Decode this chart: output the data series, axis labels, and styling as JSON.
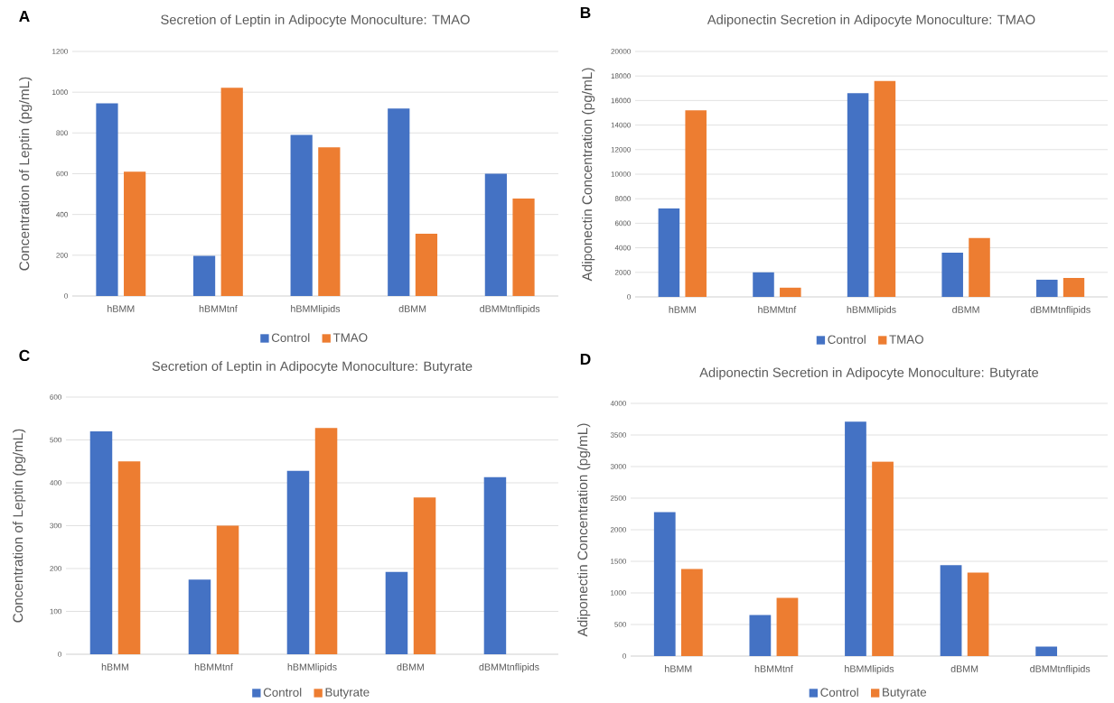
{
  "chart_data": [
    {
      "type": "bar",
      "title": "Secretion of Leptin in Adipocyte Monoculture: TMAO",
      "ylabel": "Concentration of Leptin (pg/mL)",
      "categories": [
        "hBMM",
        "hBMMtnf",
        "hBMMlipids",
        "dBMM",
        "dBMMtnflipids"
      ],
      "series": [
        {
          "name": "Control",
          "color": "#4472c4",
          "values": [
            945,
            197,
            790,
            920,
            600
          ]
        },
        {
          "name": "TMAO",
          "color": "#ed7d31",
          "values": [
            610,
            1022,
            730,
            305,
            478
          ]
        }
      ],
      "ylim": [
        0,
        1200
      ],
      "yticks": [
        0,
        200,
        400,
        600,
        800,
        1000,
        1200
      ],
      "grid": "y",
      "legend": "bottom",
      "annotations": [
        "A"
      ]
    },
    {
      "type": "bar",
      "title": "Adiponectin Secretion in Adipocyte Monoculture: TMAO",
      "ylabel": "Adiponectin Concentration (pg/mL)",
      "categories": [
        "hBMM",
        "hBMMtnf",
        "hBMMlipids",
        "dBMM",
        "dBMMtnflipids"
      ],
      "series": [
        {
          "name": "Control",
          "color": "#4472c4",
          "values": [
            7200,
            2000,
            16600,
            3600,
            1400
          ]
        },
        {
          "name": "TMAO",
          "color": "#ed7d31",
          "values": [
            15200,
            750,
            17600,
            4800,
            1550
          ]
        }
      ],
      "ylim": [
        0,
        20000
      ],
      "yticks": [
        0,
        2000,
        4000,
        6000,
        8000,
        10000,
        12000,
        14000,
        16000,
        18000,
        20000
      ],
      "grid": "y",
      "legend": "bottom",
      "annotations": [
        "B"
      ]
    },
    {
      "type": "bar",
      "title": "Secretion of Leptin in Adipocyte Monoculture: Butyrate",
      "ylabel": "Concentration of Leptin (pg/mL)",
      "categories": [
        "hBMM",
        "hBMMtnf",
        "hBMMlipids",
        "dBMM",
        "dBMMtnflipids"
      ],
      "series": [
        {
          "name": "Control",
          "color": "#4472c4",
          "values": [
            520,
            174,
            428,
            192,
            413
          ]
        },
        {
          "name": "Butyrate",
          "color": "#ed7d31",
          "values": [
            450,
            300,
            528,
            366,
            null
          ]
        }
      ],
      "ylim": [
        0,
        600
      ],
      "yticks": [
        0,
        100,
        200,
        300,
        400,
        500,
        600
      ],
      "grid": "y",
      "legend": "bottom",
      "annotations": [
        "C"
      ]
    },
    {
      "type": "bar",
      "title": "Adiponectin Secretion in Adipocyte Monoculture: Butyrate",
      "ylabel": "Adiponectin Concentration (pg/mL)",
      "categories": [
        "hBMM",
        "hBMMtnf",
        "hBMMlipids",
        "dBMM",
        "dBMMtnflipids"
      ],
      "series": [
        {
          "name": "Control",
          "color": "#4472c4",
          "values": [
            2280,
            650,
            3710,
            1440,
            150
          ]
        },
        {
          "name": "Butyrate",
          "color": "#ed7d31",
          "values": [
            1380,
            920,
            3080,
            1320,
            null
          ]
        }
      ],
      "ylim": [
        0,
        4000
      ],
      "yticks": [
        0,
        500,
        1000,
        1500,
        2000,
        2500,
        3000,
        3500,
        4000
      ],
      "grid": "y",
      "legend": "bottom",
      "annotations": [
        "D"
      ]
    }
  ]
}
